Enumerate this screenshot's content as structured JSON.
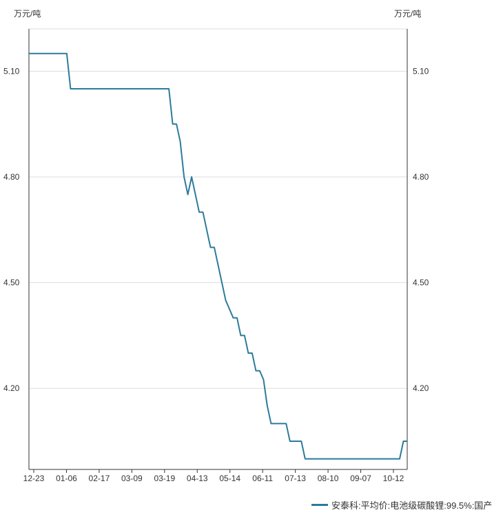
{
  "chart_data": {
    "type": "line",
    "y_unit_left": "万元/吨",
    "y_unit_right": "万元/吨",
    "ylim": [
      3.97,
      5.22
    ],
    "y_ticks": [
      4.2,
      4.5,
      4.8,
      5.1
    ],
    "y_tick_labels": [
      "4.20",
      "4.50",
      "4.80",
      "5.10"
    ],
    "x_tick_labels": [
      "12-23",
      "01-06",
      "02-17",
      "03-09",
      "03-19",
      "04-13",
      "05-14",
      "06-11",
      "07-13",
      "08-10",
      "09-07",
      "10-12"
    ],
    "grid": true,
    "legend_position": "bottom-right",
    "series": [
      {
        "name": "安泰科:平均价:电池级碳酸锂:99.5%:国产",
        "color": "#2b7b9b",
        "x": [
          0,
          10,
          11,
          37,
          38,
          39,
          40,
          41,
          42,
          43,
          44,
          45,
          46,
          47,
          48,
          49,
          50,
          51,
          52,
          53,
          54,
          55,
          56,
          57,
          58,
          59,
          60,
          61,
          62,
          63,
          64,
          65,
          66,
          67,
          68,
          69,
          70,
          71,
          72,
          73,
          74,
          75,
          76,
          77,
          78,
          79,
          80,
          81,
          82,
          98,
          99,
          100
        ],
        "y": [
          5.15,
          5.15,
          5.05,
          5.05,
          4.95,
          4.95,
          4.9,
          4.8,
          4.75,
          4.8,
          4.75,
          4.7,
          4.7,
          4.65,
          4.6,
          4.6,
          4.55,
          4.5,
          4.45,
          4.425,
          4.4,
          4.4,
          4.35,
          4.35,
          4.3,
          4.3,
          4.25,
          4.25,
          4.225,
          4.15,
          4.1,
          4.1,
          4.1,
          4.1,
          4.1,
          4.05,
          4.05,
          4.05,
          4.05,
          4.0,
          4.0,
          4.0,
          4.0,
          4.0,
          4.0,
          4.0,
          4.0,
          4.0,
          4.0,
          4.0,
          4.05,
          4.05
        ]
      }
    ]
  }
}
